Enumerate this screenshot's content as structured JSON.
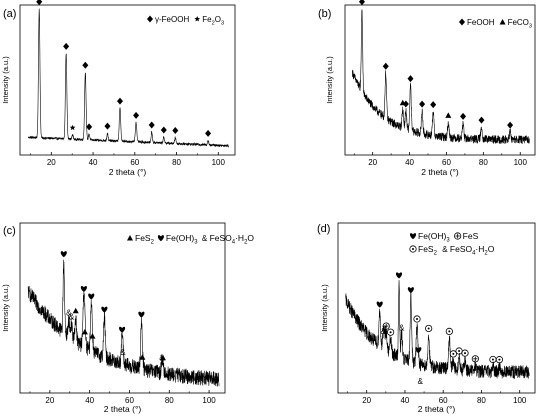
{
  "chart_data": [
    {
      "type": "line",
      "panel_label": "(a)",
      "xlabel": "2 theta (°)",
      "ylabel": "Intensity (a.u.)",
      "xlim": [
        5,
        108
      ],
      "x_ticks": [
        20,
        40,
        60,
        80,
        100
      ],
      "ylim": [
        0,
        1
      ],
      "legend": {
        "placement": "top-right",
        "entries": [
          {
            "marker": "diamond",
            "parts": [
              {
                "t": "γ-FeOOH"
              }
            ]
          },
          {
            "marker": "star",
            "parts": [
              {
                "t": "Fe"
              },
              {
                "t": "2",
                "s": "sub"
              },
              {
                "t": "O"
              },
              {
                "t": "3",
                "s": "sub"
              }
            ]
          }
        ]
      },
      "baseline": {
        "start": 0.12,
        "end": 0.06,
        "noise": 0.008
      },
      "peaks": [
        {
          "x": 14.2,
          "h": 0.86,
          "w": 0.35,
          "m": "diamond"
        },
        {
          "x": 27.1,
          "h": 0.57,
          "w": 0.35,
          "m": "diamond"
        },
        {
          "x": 36.3,
          "h": 0.45,
          "w": 0.35,
          "m": "diamond"
        },
        {
          "x": 30.2,
          "h": 0.03,
          "w": 0.3,
          "m": "star"
        },
        {
          "x": 38.1,
          "h": 0.04,
          "w": 0.3,
          "m": "diamond"
        },
        {
          "x": 46.9,
          "h": 0.05,
          "w": 0.3,
          "m": "diamond"
        },
        {
          "x": 52.9,
          "h": 0.22,
          "w": 0.35,
          "m": "diamond"
        },
        {
          "x": 60.6,
          "h": 0.13,
          "w": 0.35,
          "m": "diamond"
        },
        {
          "x": 68.1,
          "h": 0.07,
          "w": 0.3,
          "m": "diamond"
        },
        {
          "x": 73.9,
          "h": 0.04,
          "w": 0.3,
          "m": "diamond"
        },
        {
          "x": 79.4,
          "h": 0.04,
          "w": 0.3,
          "m": "diamond"
        },
        {
          "x": 95.1,
          "h": 0.03,
          "w": 0.3,
          "m": "diamond"
        }
      ]
    },
    {
      "type": "line",
      "panel_label": "(b)",
      "xlabel": "2 theta (°)",
      "ylabel": "Intensity (a.u.)",
      "xlim": [
        5,
        108
      ],
      "x_ticks": [
        20,
        40,
        60,
        80,
        100
      ],
      "ylim": [
        0,
        1
      ],
      "legend": {
        "placement": "top-right",
        "entries": [
          {
            "marker": "diamond",
            "parts": [
              {
                "t": "FeOOH"
              }
            ]
          },
          {
            "marker": "triangle",
            "parts": [
              {
                "t": "FeCO"
              },
              {
                "t": "3",
                "s": "sub"
              }
            ]
          }
        ]
      },
      "baseline": {
        "start": 0.55,
        "end": 0.1,
        "decay": 16,
        "noise": 0.028
      },
      "peaks": [
        {
          "x": 14.2,
          "h": 0.55,
          "w": 0.35,
          "m": "diamond"
        },
        {
          "x": 27.1,
          "h": 0.3,
          "w": 0.4,
          "m": "diamond"
        },
        {
          "x": 36.3,
          "h": 0.12,
          "w": 0.4,
          "m": "triangle"
        },
        {
          "x": 38.0,
          "h": 0.12,
          "w": 0.4,
          "m": "diamond"
        },
        {
          "x": 40.5,
          "h": 0.3,
          "w": 0.4,
          "m": "diamond"
        },
        {
          "x": 46.8,
          "h": 0.15,
          "w": 0.4,
          "m": "diamond"
        },
        {
          "x": 52.8,
          "h": 0.16,
          "w": 0.4,
          "m": "diamond"
        },
        {
          "x": 61.0,
          "h": 0.1,
          "w": 0.4,
          "m": "triangle"
        },
        {
          "x": 69.0,
          "h": 0.1,
          "w": 0.4,
          "m": "diamond"
        },
        {
          "x": 79.0,
          "h": 0.08,
          "w": 0.4,
          "m": "diamond"
        },
        {
          "x": 94.5,
          "h": 0.05,
          "w": 0.4,
          "m": "diamond"
        }
      ]
    },
    {
      "type": "line",
      "panel_label": "(c)",
      "xlabel": "2 theta (°)",
      "ylabel": "Intensity (a.u.)",
      "xlim": [
        5,
        108
      ],
      "x_ticks": [
        20,
        40,
        60,
        80,
        100
      ],
      "ylim": [
        0,
        1
      ],
      "legend": {
        "placement": "top-right",
        "entries": [
          {
            "marker": "triangle",
            "parts": [
              {
                "t": "FeS"
              },
              {
                "t": "2",
                "s": "sub"
              }
            ]
          },
          {
            "marker": "heart",
            "parts": [
              {
                "t": "Fe(OH)"
              },
              {
                "t": "3",
                "s": "sub"
              }
            ]
          },
          {
            "marker": "amp",
            "parts": [
              {
                "t": "FeSO"
              },
              {
                "t": "4",
                "s": "sub"
              },
              {
                "t": "·H"
              },
              {
                "t": "2",
                "s": "sub"
              },
              {
                "t": "O"
              }
            ]
          }
        ]
      },
      "baseline": {
        "start": 0.6,
        "end": 0.06,
        "decay": 30,
        "noise": 0.045
      },
      "peaks": [
        {
          "x": 27.0,
          "h": 0.42,
          "w": 0.35,
          "m": "heart"
        },
        {
          "x": 29.5,
          "h": 0.1,
          "w": 0.4,
          "m": "amp"
        },
        {
          "x": 30.9,
          "h": 0.09,
          "w": 0.4,
          "m": "amp"
        },
        {
          "x": 33.0,
          "h": 0.14,
          "w": 0.4,
          "m": "triangle"
        },
        {
          "x": 37.1,
          "h": 0.3,
          "w": 0.45,
          "m": "heart"
        },
        {
          "x": 37.6,
          "h": 0.05,
          "w": 0.45,
          "m": "triangle"
        },
        {
          "x": 40.8,
          "h": 0.28,
          "w": 0.4,
          "m": "heart"
        },
        {
          "x": 41.4,
          "h": 0.05,
          "w": 0.4,
          "m": "triangle"
        },
        {
          "x": 47.4,
          "h": 0.24,
          "w": 0.4,
          "m": "heart"
        },
        {
          "x": 56.3,
          "h": 0.16,
          "w": 0.4,
          "m": "heart"
        },
        {
          "x": 56.7,
          "h": 0.03,
          "w": 0.4,
          "m": "amp"
        },
        {
          "x": 66.0,
          "h": 0.28,
          "w": 0.4,
          "m": "heart"
        },
        {
          "x": 66.5,
          "h": 0.03,
          "w": 0.4,
          "m": "triangle"
        },
        {
          "x": 76.3,
          "h": 0.05,
          "w": 0.4,
          "m": "amp"
        },
        {
          "x": 76.8,
          "h": 0.05,
          "w": 0.4,
          "m": "triangle"
        }
      ]
    },
    {
      "type": "line",
      "panel_label": "(d)",
      "xlabel": "2 theta (°)",
      "ylabel": "Intensity (a.u.)",
      "xlim": [
        5,
        108
      ],
      "x_ticks": [
        20,
        40,
        60,
        80,
        100
      ],
      "ylim": [
        0,
        1
      ],
      "legend": {
        "placement": "top-right",
        "entries": [
          {
            "marker": "heart",
            "parts": [
              {
                "t": "Fe(OH)"
              },
              {
                "t": "3",
                "s": "sub"
              }
            ]
          },
          {
            "marker": "oplus",
            "parts": [
              {
                "t": "FeS"
              }
            ]
          },
          {
            "marker": "odot",
            "parts": [
              {
                "t": "FeS"
              },
              {
                "t": "2",
                "s": "sub"
              }
            ]
          },
          {
            "marker": "amp",
            "parts": [
              {
                "t": "FeSO"
              },
              {
                "t": "4",
                "s": "sub"
              },
              {
                "t": "·H"
              },
              {
                "t": "2",
                "s": "sub"
              },
              {
                "t": "O"
              }
            ]
          }
        ]
      },
      "baseline": {
        "start": 0.55,
        "end": 0.12,
        "decay": 18,
        "noise": 0.04
      },
      "peaks": [
        {
          "x": 26.8,
          "h": 0.2,
          "w": 0.4,
          "m": "heart"
        },
        {
          "x": 28.6,
          "h": 0.06,
          "w": 0.4,
          "m": "amp"
        },
        {
          "x": 29.3,
          "h": 0.08,
          "w": 0.4,
          "m": "amp"
        },
        {
          "x": 30.2,
          "h": 0.1,
          "w": 0.4,
          "m": "oplus"
        },
        {
          "x": 32.5,
          "h": 0.08,
          "w": 0.4,
          "m": "odot"
        },
        {
          "x": 36.9,
          "h": 0.44,
          "w": 0.3,
          "m": "heart"
        },
        {
          "x": 38.3,
          "h": 0.14,
          "w": 0.4,
          "m": "amp"
        },
        {
          "x": 43.1,
          "h": 0.38,
          "w": 0.4,
          "m": "heart"
        },
        {
          "x": 46.3,
          "h": 0.22,
          "w": 0.4,
          "m": "odot"
        },
        {
          "x": 47.0,
          "h": 0.04,
          "w": 0.4,
          "m": "heart"
        },
        {
          "x": 52.4,
          "h": 0.18,
          "w": 0.4,
          "m": "odot"
        },
        {
          "x": 63.2,
          "h": 0.18,
          "w": 0.4,
          "m": "odot"
        },
        {
          "x": 65.3,
          "h": 0.05,
          "w": 0.4,
          "m": "odot"
        },
        {
          "x": 68.3,
          "h": 0.07,
          "w": 0.4,
          "m": "odot"
        },
        {
          "x": 71.4,
          "h": 0.06,
          "w": 0.4,
          "m": "odot"
        },
        {
          "x": 76.8,
          "h": 0.03,
          "w": 0.4,
          "m": "oplus"
        },
        {
          "x": 86.0,
          "h": 0.03,
          "w": 0.4,
          "m": "odot"
        },
        {
          "x": 89.4,
          "h": 0.03,
          "w": 0.4,
          "m": "odot"
        }
      ],
      "annotation": "&"
    }
  ]
}
